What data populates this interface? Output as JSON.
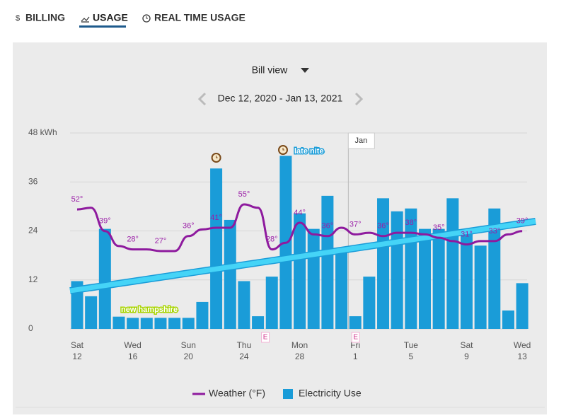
{
  "tabs": [
    {
      "icon": "$",
      "label": "BILLING"
    },
    {
      "label": "USAGE"
    },
    {
      "label": "REAL TIME USAGE"
    }
  ],
  "view_selector": "Bill view",
  "date_range": "Dec 12, 2020 - Jan 13, 2021",
  "chart_data": {
    "type": "bar",
    "categories": [
      "12",
      null,
      null,
      null,
      "16",
      null,
      null,
      null,
      "20",
      null,
      null,
      null,
      "24",
      null,
      null,
      null,
      "28",
      null,
      null,
      null,
      "1",
      null,
      null,
      null,
      "5",
      null,
      null,
      null,
      "9",
      null,
      null,
      null,
      "13"
    ],
    "weekdays": [
      "Sat",
      null,
      null,
      null,
      "Wed",
      null,
      null,
      null,
      "Sun",
      null,
      null,
      null,
      "Thu",
      null,
      null,
      null,
      "Mon",
      null,
      null,
      null,
      "Fri",
      null,
      null,
      null,
      "Tue",
      null,
      null,
      null,
      "Sat",
      null,
      null,
      null,
      "Wed"
    ],
    "ylim": [
      0,
      48
    ],
    "yticks": [
      0,
      12,
      24,
      36,
      {
        "value": 48,
        "label": "48 kWh"
      }
    ],
    "grid": true,
    "series": [
      {
        "name": "Weather (°F)",
        "type": "line",
        "axis": "y2",
        "color": "#8e1a9e",
        "values": [
          52,
          53,
          39,
          30,
          28,
          28,
          27,
          27,
          36,
          40,
          41,
          41,
          55,
          53,
          28,
          32,
          44,
          37,
          36,
          41,
          37,
          38,
          36,
          38,
          38,
          37,
          35,
          33,
          31,
          33,
          33,
          37,
          39
        ],
        "value_labels": [
          "52°",
          null,
          "39°",
          null,
          "28°",
          null,
          "27°",
          null,
          "36°",
          null,
          "41°",
          null,
          "55°",
          null,
          "28°",
          null,
          "44°",
          null,
          "36°",
          null,
          "37°",
          null,
          "36°",
          null,
          "38°",
          null,
          "35°",
          null,
          "31°",
          null,
          "33°",
          null,
          "39°"
        ]
      },
      {
        "name": "Electricity Use",
        "type": "bar",
        "color": "#1a9cd8",
        "values": [
          11.7,
          8,
          24.5,
          3,
          2.7,
          2.7,
          2.7,
          2.7,
          2.7,
          6.6,
          39.3,
          26.7,
          11.7,
          3.1,
          12.8,
          42.4,
          28.3,
          24.5,
          32.6,
          19.8,
          3.1,
          12.8,
          32,
          28.8,
          29.5,
          24.5,
          24.5,
          32,
          23.8,
          20.4,
          29.5,
          4.5,
          11.2
        ]
      }
    ],
    "month_marker": "Jan",
    "annotations": [
      "new hampshire",
      "late nite"
    ],
    "event_markers": [
      "E",
      "E"
    ]
  }
}
